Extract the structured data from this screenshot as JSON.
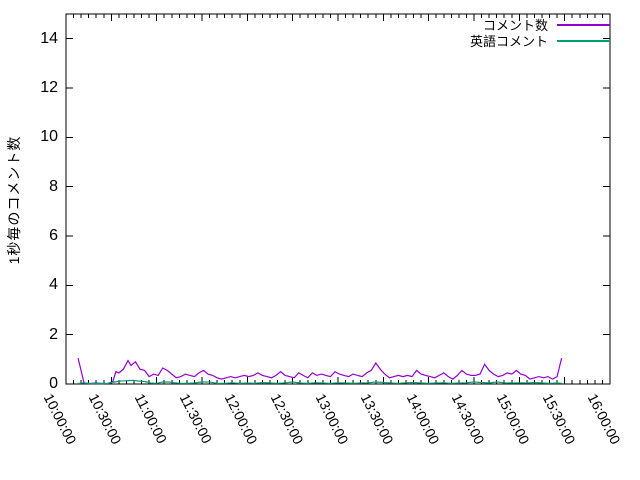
{
  "chart_data": {
    "type": "line",
    "title": "",
    "xlabel": "",
    "ylabel": "1秒毎のコメント数",
    "ylim": [
      0,
      15
    ],
    "xlim": [
      "10:00:00",
      "16:00:00"
    ],
    "y_ticks": [
      0,
      2,
      4,
      6,
      8,
      10,
      12,
      14
    ],
    "x_major_ticks": [
      "10:00:00",
      "10:30:00",
      "11:00:00",
      "11:30:00",
      "12:00:00",
      "12:30:00",
      "13:00:00",
      "13:30:00",
      "14:00:00",
      "14:30:00",
      "15:00:00",
      "15:30:00",
      "16:00:00"
    ],
    "x_minor_tick_minutes": 5,
    "grid": false,
    "legend_position": "top-right-inside",
    "axis_color": "#000000",
    "background_color": "#ffffff",
    "series": [
      {
        "name": "コメント数",
        "color": "#9400d3",
        "points": [
          [
            "10:08",
            1.05
          ],
          [
            "10:12",
            0.03
          ],
          [
            "10:16",
            0.02
          ],
          [
            "10:20",
            0.04
          ],
          [
            "10:24",
            0.02
          ],
          [
            "10:28",
            0.03
          ],
          [
            "10:31",
            0.1
          ],
          [
            "10:33",
            0.5
          ],
          [
            "10:35",
            0.45
          ],
          [
            "10:38",
            0.6
          ],
          [
            "10:41",
            0.95
          ],
          [
            "10:43",
            0.75
          ],
          [
            "10:46",
            0.9
          ],
          [
            "10:49",
            0.6
          ],
          [
            "10:52",
            0.55
          ],
          [
            "10:55",
            0.3
          ],
          [
            "10:58",
            0.4
          ],
          [
            "11:01",
            0.35
          ],
          [
            "11:04",
            0.65
          ],
          [
            "11:07",
            0.55
          ],
          [
            "11:10",
            0.4
          ],
          [
            "11:13",
            0.25
          ],
          [
            "11:16",
            0.3
          ],
          [
            "11:19",
            0.4
          ],
          [
            "11:22",
            0.35
          ],
          [
            "11:25",
            0.3
          ],
          [
            "11:28",
            0.45
          ],
          [
            "11:31",
            0.55
          ],
          [
            "11:34",
            0.4
          ],
          [
            "11:37",
            0.35
          ],
          [
            "11:40",
            0.25
          ],
          [
            "11:43",
            0.2
          ],
          [
            "11:46",
            0.25
          ],
          [
            "11:49",
            0.3
          ],
          [
            "11:52",
            0.25
          ],
          [
            "11:55",
            0.3
          ],
          [
            "11:58",
            0.35
          ],
          [
            "12:01",
            0.3
          ],
          [
            "12:04",
            0.35
          ],
          [
            "12:07",
            0.45
          ],
          [
            "12:10",
            0.35
          ],
          [
            "12:13",
            0.3
          ],
          [
            "12:16",
            0.25
          ],
          [
            "12:19",
            0.35
          ],
          [
            "12:22",
            0.5
          ],
          [
            "12:25",
            0.35
          ],
          [
            "12:28",
            0.3
          ],
          [
            "12:31",
            0.25
          ],
          [
            "12:34",
            0.45
          ],
          [
            "12:37",
            0.35
          ],
          [
            "12:40",
            0.25
          ],
          [
            "12:43",
            0.45
          ],
          [
            "12:46",
            0.35
          ],
          [
            "12:49",
            0.4
          ],
          [
            "12:52",
            0.35
          ],
          [
            "12:55",
            0.3
          ],
          [
            "12:58",
            0.5
          ],
          [
            "13:01",
            0.4
          ],
          [
            "13:04",
            0.35
          ],
          [
            "13:07",
            0.3
          ],
          [
            "13:10",
            0.4
          ],
          [
            "13:13",
            0.35
          ],
          [
            "13:16",
            0.3
          ],
          [
            "13:19",
            0.45
          ],
          [
            "13:22",
            0.55
          ],
          [
            "13:25",
            0.85
          ],
          [
            "13:28",
            0.6
          ],
          [
            "13:31",
            0.4
          ],
          [
            "13:34",
            0.25
          ],
          [
            "13:37",
            0.3
          ],
          [
            "13:40",
            0.35
          ],
          [
            "13:43",
            0.3
          ],
          [
            "13:46",
            0.35
          ],
          [
            "13:49",
            0.3
          ],
          [
            "13:52",
            0.55
          ],
          [
            "13:55",
            0.4
          ],
          [
            "13:58",
            0.35
          ],
          [
            "14:01",
            0.3
          ],
          [
            "14:04",
            0.25
          ],
          [
            "14:07",
            0.35
          ],
          [
            "14:10",
            0.45
          ],
          [
            "14:13",
            0.3
          ],
          [
            "14:16",
            0.2
          ],
          [
            "14:19",
            0.35
          ],
          [
            "14:22",
            0.55
          ],
          [
            "14:25",
            0.4
          ],
          [
            "14:28",
            0.35
          ],
          [
            "14:31",
            0.35
          ],
          [
            "14:34",
            0.4
          ],
          [
            "14:37",
            0.8
          ],
          [
            "14:40",
            0.55
          ],
          [
            "14:43",
            0.4
          ],
          [
            "14:46",
            0.3
          ],
          [
            "14:49",
            0.35
          ],
          [
            "14:52",
            0.45
          ],
          [
            "14:55",
            0.4
          ],
          [
            "14:58",
            0.55
          ],
          [
            "15:01",
            0.4
          ],
          [
            "15:04",
            0.35
          ],
          [
            "15:07",
            0.2
          ],
          [
            "15:10",
            0.25
          ],
          [
            "15:13",
            0.3
          ],
          [
            "15:16",
            0.25
          ],
          [
            "15:19",
            0.3
          ],
          [
            "15:22",
            0.2
          ],
          [
            "15:25",
            0.3
          ],
          [
            "15:28",
            1.05
          ]
        ]
      },
      {
        "name": "英語コメント",
        "color": "#009e73",
        "points": [
          [
            "10:08",
            0.02
          ],
          [
            "10:12",
            0.05
          ],
          [
            "10:16",
            0.02
          ],
          [
            "10:20",
            0.02
          ],
          [
            "10:24",
            0.02
          ],
          [
            "10:28",
            0.03
          ],
          [
            "10:32",
            0.08
          ],
          [
            "10:36",
            0.12
          ],
          [
            "10:40",
            0.13
          ],
          [
            "10:44",
            0.15
          ],
          [
            "10:48",
            0.12
          ],
          [
            "10:52",
            0.1
          ],
          [
            "10:56",
            0.04
          ],
          [
            "11:00",
            0.03
          ],
          [
            "11:04",
            0.08
          ],
          [
            "11:08",
            0.08
          ],
          [
            "11:12",
            0.05
          ],
          [
            "11:16",
            0.03
          ],
          [
            "11:20",
            0.03
          ],
          [
            "11:25",
            0.04
          ],
          [
            "11:30",
            0.08
          ],
          [
            "11:35",
            0.08
          ],
          [
            "11:40",
            0.03
          ],
          [
            "11:45",
            0.03
          ],
          [
            "11:50",
            0.05
          ],
          [
            "11:55",
            0.03
          ],
          [
            "12:00",
            0.04
          ],
          [
            "12:05",
            0.03
          ],
          [
            "12:10",
            0.06
          ],
          [
            "12:15",
            0.04
          ],
          [
            "12:20",
            0.03
          ],
          [
            "12:25",
            0.05
          ],
          [
            "12:30",
            0.08
          ],
          [
            "12:35",
            0.04
          ],
          [
            "12:40",
            0.03
          ],
          [
            "12:45",
            0.05
          ],
          [
            "12:50",
            0.04
          ],
          [
            "12:55",
            0.03
          ],
          [
            "13:00",
            0.05
          ],
          [
            "13:05",
            0.04
          ],
          [
            "13:10",
            0.03
          ],
          [
            "13:15",
            0.04
          ],
          [
            "13:20",
            0.05
          ],
          [
            "13:25",
            0.08
          ],
          [
            "13:30",
            0.06
          ],
          [
            "13:35",
            0.04
          ],
          [
            "13:40",
            0.03
          ],
          [
            "13:45",
            0.05
          ],
          [
            "13:50",
            0.06
          ],
          [
            "13:55",
            0.04
          ],
          [
            "14:00",
            0.03
          ],
          [
            "14:05",
            0.04
          ],
          [
            "14:10",
            0.05
          ],
          [
            "14:15",
            0.03
          ],
          [
            "14:20",
            0.04
          ],
          [
            "14:25",
            0.05
          ],
          [
            "14:30",
            0.08
          ],
          [
            "14:35",
            0.06
          ],
          [
            "14:40",
            0.04
          ],
          [
            "14:45",
            0.08
          ],
          [
            "14:50",
            0.05
          ],
          [
            "14:55",
            0.04
          ],
          [
            "15:00",
            0.05
          ],
          [
            "15:05",
            0.04
          ],
          [
            "15:10",
            0.06
          ],
          [
            "15:15",
            0.04
          ],
          [
            "15:20",
            0.03
          ],
          [
            "15:25",
            0.04
          ],
          [
            "15:28",
            0.03
          ]
        ]
      }
    ]
  }
}
